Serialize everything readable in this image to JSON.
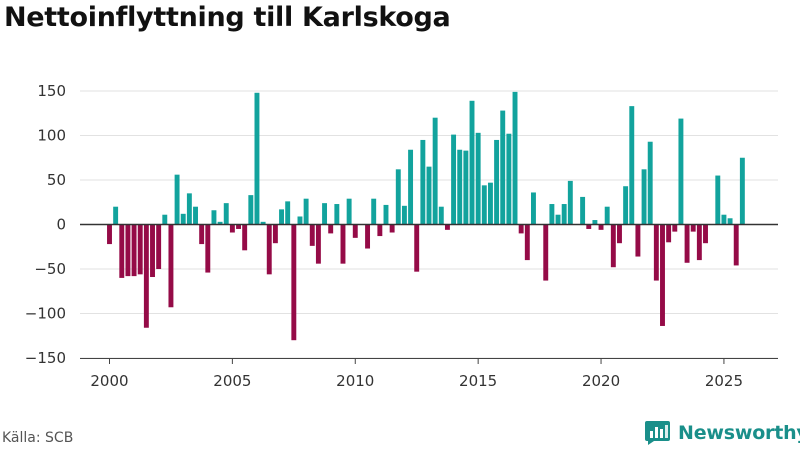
{
  "source": "Källa: SCB",
  "brand": {
    "name": "Newsworthy",
    "icon": "newsworthy-logo-icon",
    "color": "#1a8f8a"
  },
  "colors": {
    "positive": "#12a39d",
    "negative": "#950b47",
    "grid": "#e2e2e2",
    "zero": "#333333"
  },
  "chart_data": {
    "type": "bar",
    "title": "Nettoinflyttning till Karlskoga",
    "xlabel": "",
    "ylabel": "",
    "xlim": [
      1998.8,
      2027.2
    ],
    "ylim": [
      -150,
      150
    ],
    "yticks": [
      150,
      100,
      50,
      0,
      -50,
      -100,
      -150
    ],
    "ytick_labels": [
      "150",
      "100",
      "50",
      "0",
      "−50",
      "−100",
      "−150"
    ],
    "xticks": [
      2000,
      2005,
      2010,
      2015,
      2020,
      2025
    ],
    "xtick_labels": [
      "2000",
      "2005",
      "2010",
      "2015",
      "2020",
      "2025"
    ],
    "quarter_start": 2000.0,
    "quarter_step": 0.25,
    "values": [
      -22,
      20,
      -60,
      -58,
      -58,
      -56,
      -116,
      -59,
      -50,
      11,
      -93,
      56,
      12,
      35,
      20,
      -22,
      -54,
      16,
      3,
      24,
      -9,
      -5,
      -29,
      33,
      148,
      3,
      -56,
      -21,
      17,
      26,
      -130,
      9,
      29,
      -24,
      -44,
      24,
      -10,
      23,
      -44,
      29,
      -15,
      0,
      -27,
      29,
      -13,
      22,
      -9,
      62,
      21,
      84,
      -53,
      95,
      65,
      120,
      20,
      -6,
      101,
      84,
      83,
      139,
      103,
      44,
      47,
      95,
      128,
      102,
      149,
      -10,
      -40,
      36,
      0,
      -63,
      23,
      11,
      23,
      49,
      0,
      31,
      -5,
      5,
      -6,
      20,
      -48,
      -21,
      43,
      133,
      -36,
      62,
      93,
      -63,
      -114,
      -20,
      -8,
      119,
      -43,
      -8,
      -40,
      -21,
      0,
      55,
      11,
      7,
      -46,
      75
    ]
  }
}
